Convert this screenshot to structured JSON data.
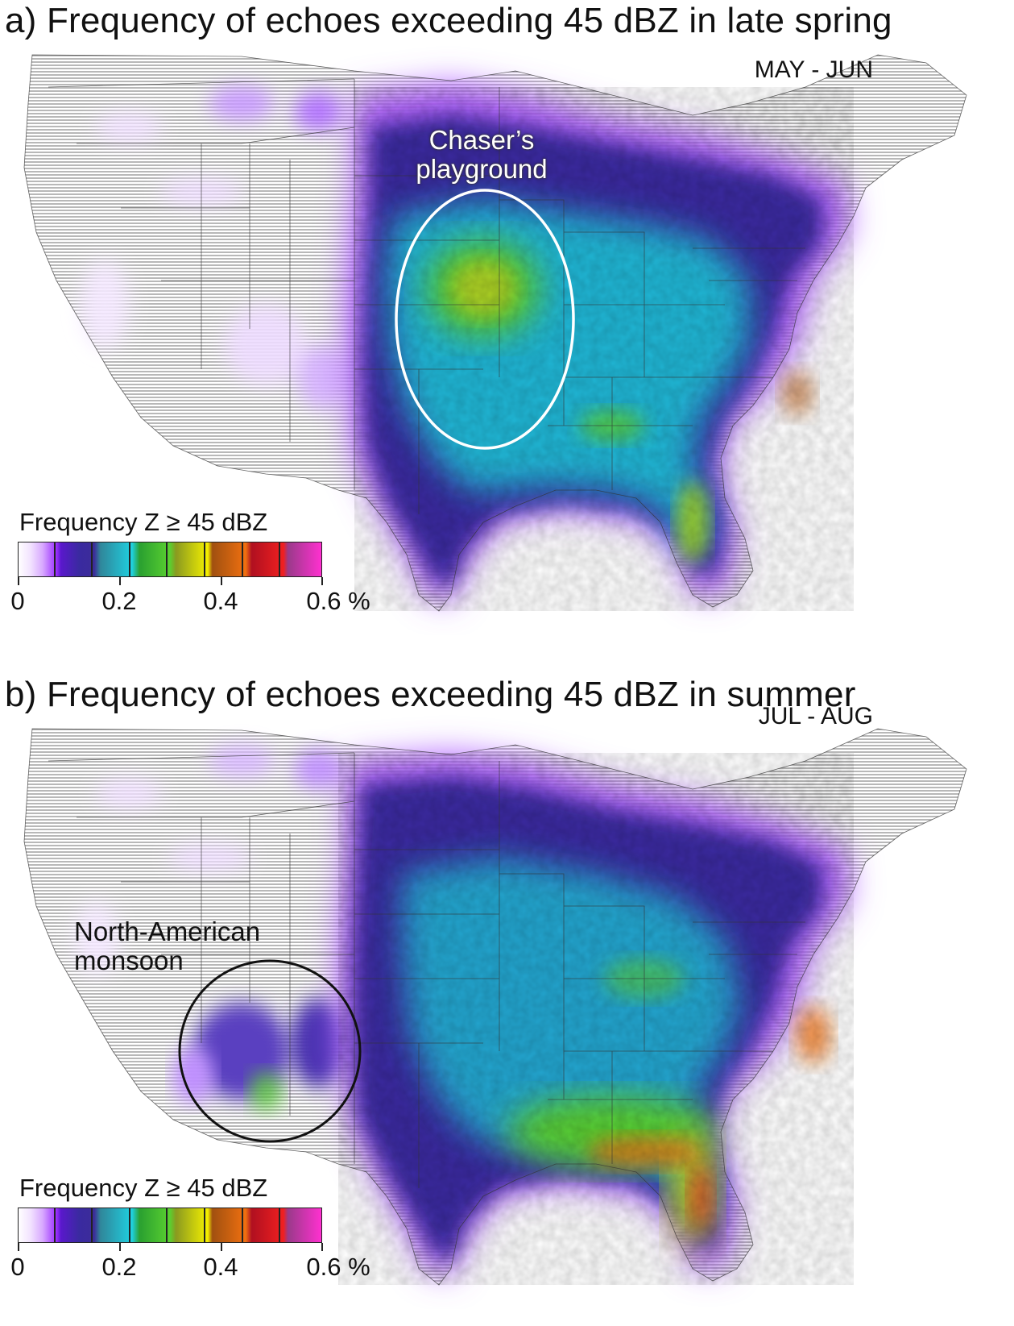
{
  "panels": [
    {
      "title": "a) Frequency of echoes exceeding 45 dBZ in late spring",
      "period": "MAY - JUN",
      "annotation": [
        "Chaser’s",
        "playground"
      ],
      "legend": {
        "title": "Frequency Z ≥ 45 dBZ",
        "ticks": [
          "0",
          "0.2",
          "0.4",
          "0.6 %"
        ]
      }
    },
    {
      "title": "b) Frequency of echoes exceeding 45 dBZ in summer",
      "period": "JUL - AUG",
      "annotation": [
        "North-American",
        "monsoon"
      ],
      "legend": {
        "title": "Frequency Z ≥ 45 dBZ",
        "ticks": [
          "0",
          "0.2",
          "0.4",
          "0.6 %"
        ]
      }
    }
  ],
  "colors": {
    "radar_coverage_hatch": "#9a9a9a",
    "freq_low": "#9b30ff",
    "freq_blue": "#3a2aa0",
    "freq_cyan": "#1fd0e0",
    "freq_green": "#5ad030",
    "freq_yellow": "#f4f000",
    "freq_orange": "#f07010",
    "freq_red": "#f02020",
    "freq_magenta": "#ff30d0"
  }
}
